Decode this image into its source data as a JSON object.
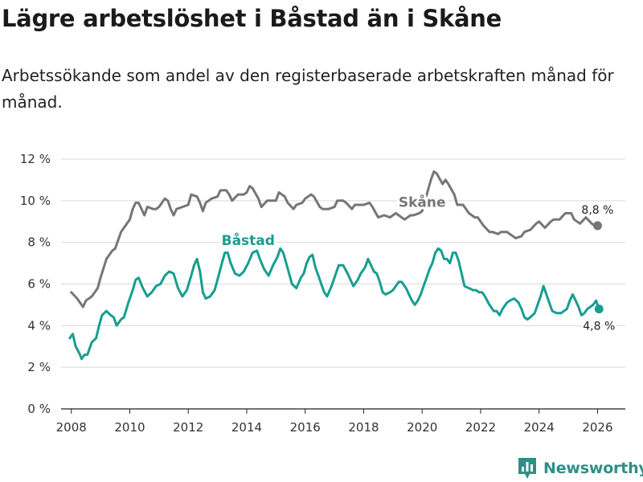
{
  "title": "Lägre arbetslöshet i Båstad än i Skåne",
  "subtitle": "Arbetssökande som andel av den registerbaserade arbetskraften månad för månad.",
  "brand": {
    "name": "Newsworthy",
    "icon": "newsworthy-logo-icon"
  },
  "colors": {
    "skane": "#767676",
    "bastad": "#179e8f",
    "grid": "#d9d9d9",
    "axis": "#222222",
    "brand": "#2f8f87"
  },
  "chart_data": {
    "type": "line",
    "title": "Lägre arbetslöshet i Båstad än i Skåne",
    "xlabel": "",
    "ylabel": "",
    "xlim": [
      2007.65,
      2026.95
    ],
    "ylim": [
      0,
      12
    ],
    "grid": true,
    "legend": "inline labels",
    "x_ticks": [
      {
        "value": 2008,
        "label": "2008"
      },
      {
        "value": 2010,
        "label": "2010"
      },
      {
        "value": 2012,
        "label": "2012"
      },
      {
        "value": 2014,
        "label": "2014"
      },
      {
        "value": 2016,
        "label": "2016"
      },
      {
        "value": 2018,
        "label": "2018"
      },
      {
        "value": 2020,
        "label": "2020"
      },
      {
        "value": 2022,
        "label": "2022"
      },
      {
        "value": 2024,
        "label": "2024"
      },
      {
        "value": 2026,
        "label": "2026"
      }
    ],
    "y_ticks": [
      {
        "value": 0,
        "label": "0 %"
      },
      {
        "value": 2,
        "label": "2 %"
      },
      {
        "value": 4,
        "label": "4 %"
      },
      {
        "value": 6,
        "label": "6 %"
      },
      {
        "value": 8,
        "label": "8 %"
      },
      {
        "value": 10,
        "label": "10 %"
      },
      {
        "value": 12,
        "label": "12 %"
      }
    ],
    "series": [
      {
        "name": "Skåne",
        "label": "Skåne",
        "color": "#767676",
        "end_label": "8,8 %",
        "label_at": {
          "x": 2020.0,
          "y": 9.7
        },
        "points": [
          [
            2008.0,
            5.6
          ],
          [
            2008.2,
            5.3
          ],
          [
            2008.4,
            4.9
          ],
          [
            2008.5,
            5.2
          ],
          [
            2008.7,
            5.4
          ],
          [
            2008.9,
            5.8
          ],
          [
            2009.0,
            6.3
          ],
          [
            2009.2,
            7.2
          ],
          [
            2009.4,
            7.6
          ],
          [
            2009.5,
            7.7
          ],
          [
            2009.7,
            8.5
          ],
          [
            2009.8,
            8.7
          ],
          [
            2010.0,
            9.1
          ],
          [
            2010.1,
            9.6
          ],
          [
            2010.2,
            9.9
          ],
          [
            2010.3,
            9.9
          ],
          [
            2010.5,
            9.3
          ],
          [
            2010.6,
            9.7
          ],
          [
            2010.8,
            9.6
          ],
          [
            2010.9,
            9.6
          ],
          [
            2011.0,
            9.7
          ],
          [
            2011.2,
            10.1
          ],
          [
            2011.3,
            10.0
          ],
          [
            2011.4,
            9.6
          ],
          [
            2011.5,
            9.3
          ],
          [
            2011.6,
            9.6
          ],
          [
            2011.8,
            9.7
          ],
          [
            2012.0,
            9.8
          ],
          [
            2012.1,
            10.3
          ],
          [
            2012.3,
            10.2
          ],
          [
            2012.4,
            9.9
          ],
          [
            2012.5,
            9.5
          ],
          [
            2012.6,
            9.9
          ],
          [
            2012.8,
            10.1
          ],
          [
            2013.0,
            10.2
          ],
          [
            2013.1,
            10.5
          ],
          [
            2013.3,
            10.5
          ],
          [
            2013.4,
            10.3
          ],
          [
            2013.5,
            10.0
          ],
          [
            2013.7,
            10.3
          ],
          [
            2013.9,
            10.3
          ],
          [
            2014.0,
            10.4
          ],
          [
            2014.1,
            10.7
          ],
          [
            2014.2,
            10.6
          ],
          [
            2014.4,
            10.1
          ],
          [
            2014.5,
            9.7
          ],
          [
            2014.7,
            10.0
          ],
          [
            2014.9,
            10.0
          ],
          [
            2015.0,
            10.0
          ],
          [
            2015.1,
            10.4
          ],
          [
            2015.3,
            10.2
          ],
          [
            2015.4,
            9.9
          ],
          [
            2015.6,
            9.6
          ],
          [
            2015.7,
            9.8
          ],
          [
            2015.9,
            9.9
          ],
          [
            2016.0,
            10.1
          ],
          [
            2016.2,
            10.3
          ],
          [
            2016.3,
            10.2
          ],
          [
            2016.5,
            9.7
          ],
          [
            2016.6,
            9.6
          ],
          [
            2016.8,
            9.6
          ],
          [
            2017.0,
            9.7
          ],
          [
            2017.1,
            10.0
          ],
          [
            2017.3,
            10.0
          ],
          [
            2017.4,
            9.9
          ],
          [
            2017.6,
            9.6
          ],
          [
            2017.7,
            9.8
          ],
          [
            2017.9,
            9.8
          ],
          [
            2018.0,
            9.8
          ],
          [
            2018.2,
            9.9
          ],
          [
            2018.3,
            9.7
          ],
          [
            2018.5,
            9.2
          ],
          [
            2018.7,
            9.3
          ],
          [
            2018.9,
            9.2
          ],
          [
            2019.0,
            9.3
          ],
          [
            2019.1,
            9.4
          ],
          [
            2019.3,
            9.2
          ],
          [
            2019.4,
            9.1
          ],
          [
            2019.6,
            9.3
          ],
          [
            2019.7,
            9.3
          ],
          [
            2019.9,
            9.4
          ],
          [
            2020.0,
            9.5
          ],
          [
            2020.1,
            10.0
          ],
          [
            2020.3,
            11.0
          ],
          [
            2020.4,
            11.4
          ],
          [
            2020.5,
            11.3
          ],
          [
            2020.7,
            10.8
          ],
          [
            2020.8,
            11.0
          ],
          [
            2020.9,
            10.8
          ],
          [
            2021.1,
            10.3
          ],
          [
            2021.2,
            9.8
          ],
          [
            2021.4,
            9.8
          ],
          [
            2021.6,
            9.4
          ],
          [
            2021.8,
            9.2
          ],
          [
            2021.9,
            9.2
          ],
          [
            2022.1,
            8.8
          ],
          [
            2022.3,
            8.5
          ],
          [
            2022.4,
            8.5
          ],
          [
            2022.6,
            8.4
          ],
          [
            2022.7,
            8.5
          ],
          [
            2022.9,
            8.5
          ],
          [
            2023.0,
            8.4
          ],
          [
            2023.2,
            8.2
          ],
          [
            2023.4,
            8.3
          ],
          [
            2023.5,
            8.5
          ],
          [
            2023.7,
            8.6
          ],
          [
            2023.9,
            8.9
          ],
          [
            2024.0,
            9.0
          ],
          [
            2024.2,
            8.7
          ],
          [
            2024.4,
            9.0
          ],
          [
            2024.5,
            9.1
          ],
          [
            2024.7,
            9.1
          ],
          [
            2024.9,
            9.4
          ],
          [
            2025.1,
            9.4
          ],
          [
            2025.2,
            9.1
          ],
          [
            2025.4,
            8.9
          ],
          [
            2025.6,
            9.2
          ],
          [
            2025.8,
            8.9
          ],
          [
            2025.9,
            8.8
          ],
          [
            2026.0,
            8.8
          ]
        ]
      },
      {
        "name": "Båstad",
        "label": "Båstad",
        "color": "#179e8f",
        "end_label": "4,8 %",
        "label_at": {
          "x": 2014.05,
          "y": 7.88
        },
        "points": [
          [
            2007.95,
            3.4
          ],
          [
            2008.05,
            3.6
          ],
          [
            2008.15,
            3.0
          ],
          [
            2008.3,
            2.6
          ],
          [
            2008.35,
            2.4
          ],
          [
            2008.45,
            2.6
          ],
          [
            2008.55,
            2.6
          ],
          [
            2008.7,
            3.2
          ],
          [
            2008.85,
            3.4
          ],
          [
            2008.95,
            4.0
          ],
          [
            2009.05,
            4.5
          ],
          [
            2009.2,
            4.7
          ],
          [
            2009.35,
            4.5
          ],
          [
            2009.45,
            4.4
          ],
          [
            2009.55,
            4.0
          ],
          [
            2009.7,
            4.3
          ],
          [
            2009.8,
            4.4
          ],
          [
            2009.95,
            5.1
          ],
          [
            2010.1,
            5.7
          ],
          [
            2010.2,
            6.2
          ],
          [
            2010.3,
            6.3
          ],
          [
            2010.45,
            5.8
          ],
          [
            2010.6,
            5.4
          ],
          [
            2010.75,
            5.6
          ],
          [
            2010.9,
            5.9
          ],
          [
            2011.05,
            6.0
          ],
          [
            2011.2,
            6.4
          ],
          [
            2011.35,
            6.6
          ],
          [
            2011.5,
            6.5
          ],
          [
            2011.65,
            5.8
          ],
          [
            2011.8,
            5.4
          ],
          [
            2011.95,
            5.7
          ],
          [
            2012.1,
            6.4
          ],
          [
            2012.2,
            6.9
          ],
          [
            2012.3,
            7.2
          ],
          [
            2012.4,
            6.6
          ],
          [
            2012.5,
            5.6
          ],
          [
            2012.6,
            5.3
          ],
          [
            2012.75,
            5.4
          ],
          [
            2012.9,
            5.7
          ],
          [
            2013.0,
            6.2
          ],
          [
            2013.15,
            7.0
          ],
          [
            2013.25,
            7.5
          ],
          [
            2013.35,
            7.5
          ],
          [
            2013.45,
            7.0
          ],
          [
            2013.6,
            6.5
          ],
          [
            2013.75,
            6.4
          ],
          [
            2013.9,
            6.6
          ],
          [
            2014.05,
            7.0
          ],
          [
            2014.2,
            7.5
          ],
          [
            2014.35,
            7.6
          ],
          [
            2014.45,
            7.2
          ],
          [
            2014.6,
            6.7
          ],
          [
            2014.75,
            6.4
          ],
          [
            2014.9,
            6.9
          ],
          [
            2015.05,
            7.3
          ],
          [
            2015.15,
            7.7
          ],
          [
            2015.25,
            7.5
          ],
          [
            2015.35,
            7.0
          ],
          [
            2015.45,
            6.5
          ],
          [
            2015.55,
            6.0
          ],
          [
            2015.7,
            5.8
          ],
          [
            2015.85,
            6.3
          ],
          [
            2015.95,
            6.5
          ],
          [
            2016.05,
            7.0
          ],
          [
            2016.15,
            7.3
          ],
          [
            2016.25,
            7.4
          ],
          [
            2016.35,
            6.8
          ],
          [
            2016.45,
            6.4
          ],
          [
            2016.55,
            6.0
          ],
          [
            2016.65,
            5.6
          ],
          [
            2016.75,
            5.4
          ],
          [
            2016.9,
            5.9
          ],
          [
            2017.05,
            6.5
          ],
          [
            2017.15,
            6.9
          ],
          [
            2017.3,
            6.9
          ],
          [
            2017.45,
            6.5
          ],
          [
            2017.55,
            6.2
          ],
          [
            2017.65,
            5.9
          ],
          [
            2017.8,
            6.2
          ],
          [
            2017.9,
            6.5
          ],
          [
            2018.05,
            6.8
          ],
          [
            2018.15,
            7.2
          ],
          [
            2018.25,
            6.9
          ],
          [
            2018.35,
            6.6
          ],
          [
            2018.45,
            6.5
          ],
          [
            2018.55,
            6.1
          ],
          [
            2018.65,
            5.6
          ],
          [
            2018.75,
            5.5
          ],
          [
            2018.9,
            5.6
          ],
          [
            2019.0,
            5.7
          ],
          [
            2019.1,
            5.9
          ],
          [
            2019.2,
            6.1
          ],
          [
            2019.3,
            6.1
          ],
          [
            2019.45,
            5.8
          ],
          [
            2019.55,
            5.5
          ],
          [
            2019.65,
            5.2
          ],
          [
            2019.75,
            5.0
          ],
          [
            2019.85,
            5.2
          ],
          [
            2019.95,
            5.5
          ],
          [
            2020.05,
            5.9
          ],
          [
            2020.15,
            6.3
          ],
          [
            2020.25,
            6.7
          ],
          [
            2020.35,
            7.0
          ],
          [
            2020.45,
            7.5
          ],
          [
            2020.55,
            7.7
          ],
          [
            2020.65,
            7.6
          ],
          [
            2020.75,
            7.2
          ],
          [
            2020.85,
            7.2
          ],
          [
            2020.95,
            7.0
          ],
          [
            2021.05,
            7.5
          ],
          [
            2021.15,
            7.5
          ],
          [
            2021.25,
            7.1
          ],
          [
            2021.35,
            6.5
          ],
          [
            2021.45,
            5.9
          ],
          [
            2021.6,
            5.8
          ],
          [
            2021.75,
            5.7
          ],
          [
            2021.85,
            5.7
          ],
          [
            2021.95,
            5.6
          ],
          [
            2022.05,
            5.6
          ],
          [
            2022.15,
            5.4
          ],
          [
            2022.3,
            5.0
          ],
          [
            2022.45,
            4.7
          ],
          [
            2022.55,
            4.7
          ],
          [
            2022.65,
            4.5
          ],
          [
            2022.75,
            4.8
          ],
          [
            2022.9,
            5.1
          ],
          [
            2023.0,
            5.2
          ],
          [
            2023.15,
            5.3
          ],
          [
            2023.3,
            5.1
          ],
          [
            2023.4,
            4.8
          ],
          [
            2023.5,
            4.4
          ],
          [
            2023.6,
            4.3
          ],
          [
            2023.7,
            4.4
          ],
          [
            2023.85,
            4.6
          ],
          [
            2023.95,
            5.0
          ],
          [
            2024.05,
            5.4
          ],
          [
            2024.15,
            5.9
          ],
          [
            2024.25,
            5.5
          ],
          [
            2024.35,
            5.1
          ],
          [
            2024.45,
            4.7
          ],
          [
            2024.6,
            4.6
          ],
          [
            2024.75,
            4.6
          ],
          [
            2024.85,
            4.7
          ],
          [
            2024.95,
            4.8
          ],
          [
            2025.05,
            5.2
          ],
          [
            2025.15,
            5.5
          ],
          [
            2025.25,
            5.2
          ],
          [
            2025.35,
            4.9
          ],
          [
            2025.45,
            4.5
          ],
          [
            2025.55,
            4.6
          ],
          [
            2025.65,
            4.8
          ],
          [
            2025.75,
            4.9
          ],
          [
            2025.85,
            5.0
          ],
          [
            2025.95,
            5.2
          ],
          [
            2026.05,
            4.8
          ]
        ]
      }
    ]
  }
}
